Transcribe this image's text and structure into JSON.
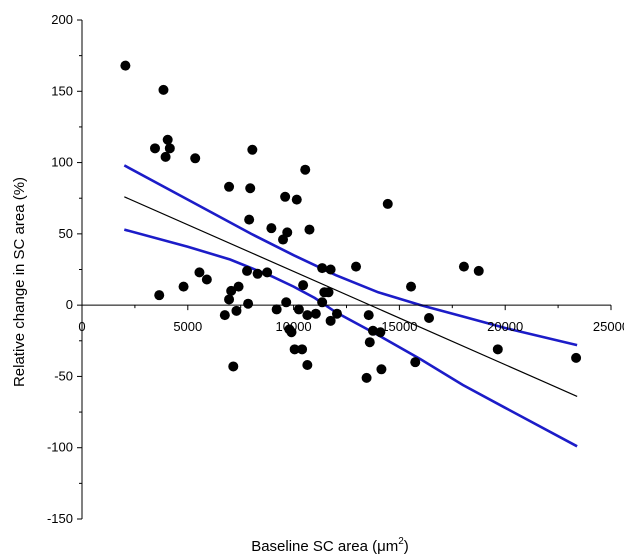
{
  "chart_data": {
    "type": "scatter",
    "title": "",
    "xlabel": "Baseline SC area (μm",
    "xlabel_superscript": "2",
    "xlabel_suffix": ")",
    "ylabel": "Relative change in SC area (%)",
    "xlim": [
      0,
      25000
    ],
    "ylim": [
      -150,
      200
    ],
    "xticks": [
      0,
      5000,
      10000,
      15000,
      20000,
      25000
    ],
    "xtick_labels": [
      "0",
      "5000",
      "10000",
      "15000",
      "20000",
      "25000"
    ],
    "yticks": [
      -150,
      -100,
      -50,
      0,
      50,
      100,
      150,
      200
    ],
    "ytick_labels": [
      "-150",
      "-100",
      "-50",
      "0",
      "50",
      "100",
      "150",
      "200"
    ],
    "grid": false,
    "legend": "none",
    "colors": {
      "points": "#000000",
      "fit": "#000000",
      "confidence": "#1c1cc8"
    },
    "points": [
      {
        "x": 2050,
        "y": 168
      },
      {
        "x": 3450,
        "y": 110
      },
      {
        "x": 3650,
        "y": 7
      },
      {
        "x": 3850,
        "y": 151
      },
      {
        "x": 3950,
        "y": 104
      },
      {
        "x": 4050,
        "y": 116
      },
      {
        "x": 4150,
        "y": 110
      },
      {
        "x": 4800,
        "y": 13
      },
      {
        "x": 5350,
        "y": 103
      },
      {
        "x": 5550,
        "y": 23
      },
      {
        "x": 5900,
        "y": 18
      },
      {
        "x": 6750,
        "y": -7
      },
      {
        "x": 6950,
        "y": 4
      },
      {
        "x": 6950,
        "y": 83
      },
      {
        "x": 7050,
        "y": 10
      },
      {
        "x": 7150,
        "y": -43
      },
      {
        "x": 7300,
        "y": -4
      },
      {
        "x": 7400,
        "y": 13
      },
      {
        "x": 7800,
        "y": 24
      },
      {
        "x": 7850,
        "y": 1
      },
      {
        "x": 7900,
        "y": 60
      },
      {
        "x": 7950,
        "y": 82
      },
      {
        "x": 8050,
        "y": 109
      },
      {
        "x": 8300,
        "y": 22
      },
      {
        "x": 8750,
        "y": 23
      },
      {
        "x": 8950,
        "y": 54
      },
      {
        "x": 9200,
        "y": -3
      },
      {
        "x": 9500,
        "y": 46
      },
      {
        "x": 9600,
        "y": 76
      },
      {
        "x": 9650,
        "y": 2
      },
      {
        "x": 9700,
        "y": 51
      },
      {
        "x": 9800,
        "y": -17
      },
      {
        "x": 9900,
        "y": -19
      },
      {
        "x": 10050,
        "y": -31
      },
      {
        "x": 10150,
        "y": 74
      },
      {
        "x": 10250,
        "y": -3
      },
      {
        "x": 10400,
        "y": -31
      },
      {
        "x": 10450,
        "y": 14
      },
      {
        "x": 10550,
        "y": 95
      },
      {
        "x": 10650,
        "y": -42
      },
      {
        "x": 10650,
        "y": -7
      },
      {
        "x": 10750,
        "y": 53
      },
      {
        "x": 11050,
        "y": -6
      },
      {
        "x": 11350,
        "y": 26
      },
      {
        "x": 11350,
        "y": 2
      },
      {
        "x": 11450,
        "y": 9
      },
      {
        "x": 11650,
        "y": 9
      },
      {
        "x": 11750,
        "y": 25
      },
      {
        "x": 11750,
        "y": -11
      },
      {
        "x": 12050,
        "y": -6
      },
      {
        "x": 12950,
        "y": 27
      },
      {
        "x": 13450,
        "y": -51
      },
      {
        "x": 13550,
        "y": -7
      },
      {
        "x": 13600,
        "y": -26
      },
      {
        "x": 13750,
        "y": -18
      },
      {
        "x": 14100,
        "y": -19
      },
      {
        "x": 14150,
        "y": -45
      },
      {
        "x": 14450,
        "y": 71
      },
      {
        "x": 15550,
        "y": 13
      },
      {
        "x": 15750,
        "y": -40
      },
      {
        "x": 16400,
        "y": -9
      },
      {
        "x": 18050,
        "y": 27
      },
      {
        "x": 18750,
        "y": 24
      },
      {
        "x": 19650,
        "y": -31
      },
      {
        "x": 23350,
        "y": -37
      }
    ],
    "fit_line": [
      {
        "x": 2000,
        "y": 76
      },
      {
        "x": 23400,
        "y": -64
      }
    ],
    "confidence_upper": [
      {
        "x": 2000,
        "y": 98
      },
      {
        "x": 5000,
        "y": 74
      },
      {
        "x": 8000,
        "y": 50
      },
      {
        "x": 10000,
        "y": 35
      },
      {
        "x": 11000,
        "y": 28
      },
      {
        "x": 12000,
        "y": 21
      },
      {
        "x": 14000,
        "y": 9
      },
      {
        "x": 16000,
        "y": 0
      },
      {
        "x": 18000,
        "y": -8
      },
      {
        "x": 20000,
        "y": -16
      },
      {
        "x": 23400,
        "y": -28
      }
    ],
    "confidence_lower": [
      {
        "x": 2000,
        "y": 53
      },
      {
        "x": 5000,
        "y": 41
      },
      {
        "x": 7000,
        "y": 32
      },
      {
        "x": 9000,
        "y": 20
      },
      {
        "x": 10000,
        "y": 13
      },
      {
        "x": 11000,
        "y": 5
      },
      {
        "x": 12000,
        "y": -5
      },
      {
        "x": 14000,
        "y": -21
      },
      {
        "x": 16000,
        "y": -38
      },
      {
        "x": 18000,
        "y": -56
      },
      {
        "x": 20000,
        "y": -72
      },
      {
        "x": 23400,
        "y": -99
      }
    ]
  }
}
